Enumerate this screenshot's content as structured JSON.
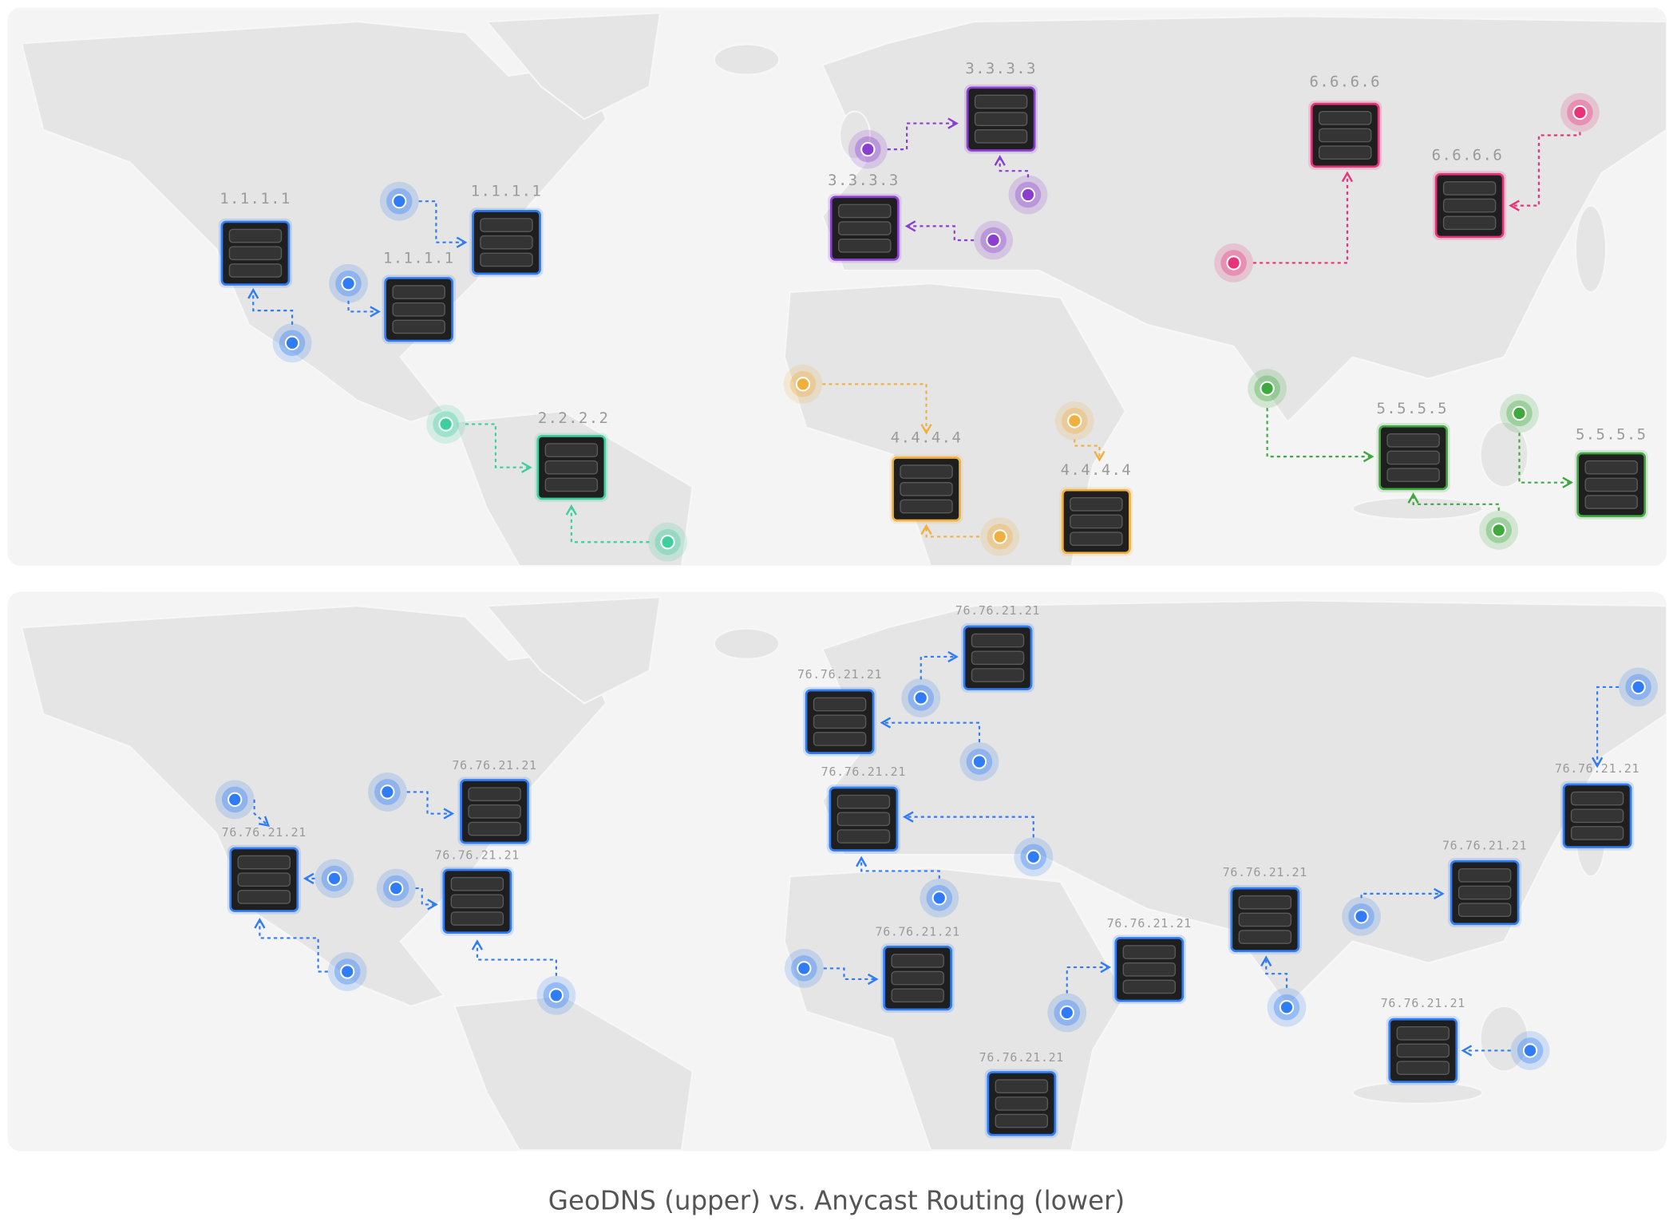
{
  "upper": {
    "servers": [
      "1.1.1.1",
      "1.1.1.1",
      "1.1.1.1",
      "2.2.2.2",
      "3.3.3.3",
      "3.3.3.3",
      "4.4.4.4",
      "4.4.4.4",
      "5.5.5.5",
      "5.5.5.5",
      "6.6.6.6",
      "6.6.6.6"
    ]
  },
  "lower": {
    "servers": [
      "76.76.21.21",
      "76.76.21.21",
      "76.76.21.21",
      "76.76.21.21",
      "76.76.21.21",
      "76.76.21.21",
      "76.76.21.21",
      "76.76.21.21",
      "76.76.21.21",
      "76.76.21.21",
      "76.76.21.21",
      "76.76.21.21",
      "76.76.21.21"
    ]
  },
  "caption": "GeoDNS (upper) vs. Anycast Routing (lower)"
}
